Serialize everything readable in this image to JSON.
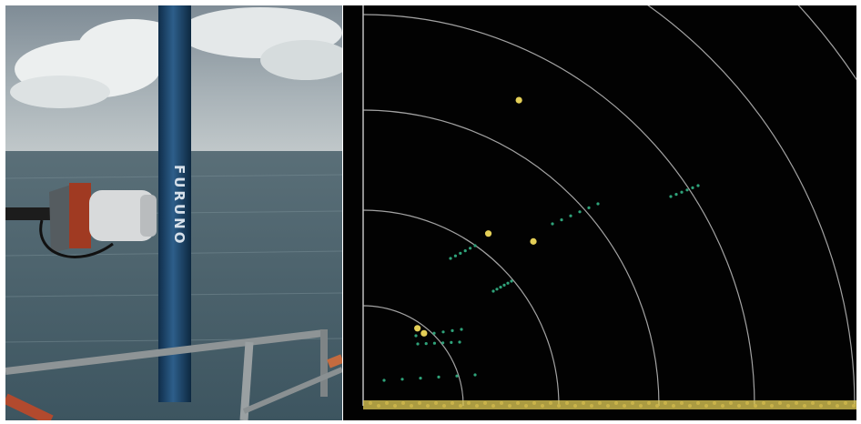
{
  "panels": {
    "photo": {
      "pole_text": "FURUNO",
      "sky_top_color": "#8e9aa3",
      "sea_color": "#4d6670"
    },
    "radar": {
      "background_color": "#020202",
      "ring_color": "#bfbfbf",
      "yellow_target_color": "#e4cf57",
      "green_target_color": "#2fa37a",
      "yellow_targets": [
        {
          "range": 0.58,
          "bearing": 63
        },
        {
          "range": 0.36,
          "bearing": 54
        },
        {
          "range": 0.4,
          "bearing": 44
        },
        {
          "range": 0.16,
          "bearing": 55
        },
        {
          "range": 0.16,
          "bearing": 50
        }
      ]
    }
  }
}
